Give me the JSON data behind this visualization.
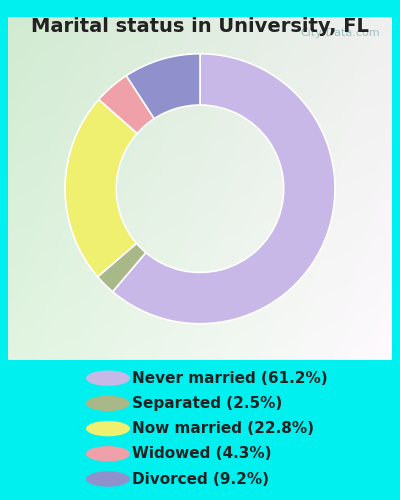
{
  "title": "Marital status in University, FL",
  "slices": [
    {
      "label": "Never married (61.2%)",
      "value": 61.2,
      "color": "#c8b8e8"
    },
    {
      "label": "Separated (2.5%)",
      "value": 2.5,
      "color": "#a8b888"
    },
    {
      "label": "Now married (22.8%)",
      "value": 22.8,
      "color": "#f0f070"
    },
    {
      "label": "Widowed (4.3%)",
      "value": 4.3,
      "color": "#f0a0a8"
    },
    {
      "label": "Divorced (9.2%)",
      "value": 9.2,
      "color": "#9090cc"
    }
  ],
  "bg_outer": "#00f0f0",
  "watermark": "City-Data.com",
  "title_fontsize": 14,
  "legend_fontsize": 11,
  "start_angle": 90
}
